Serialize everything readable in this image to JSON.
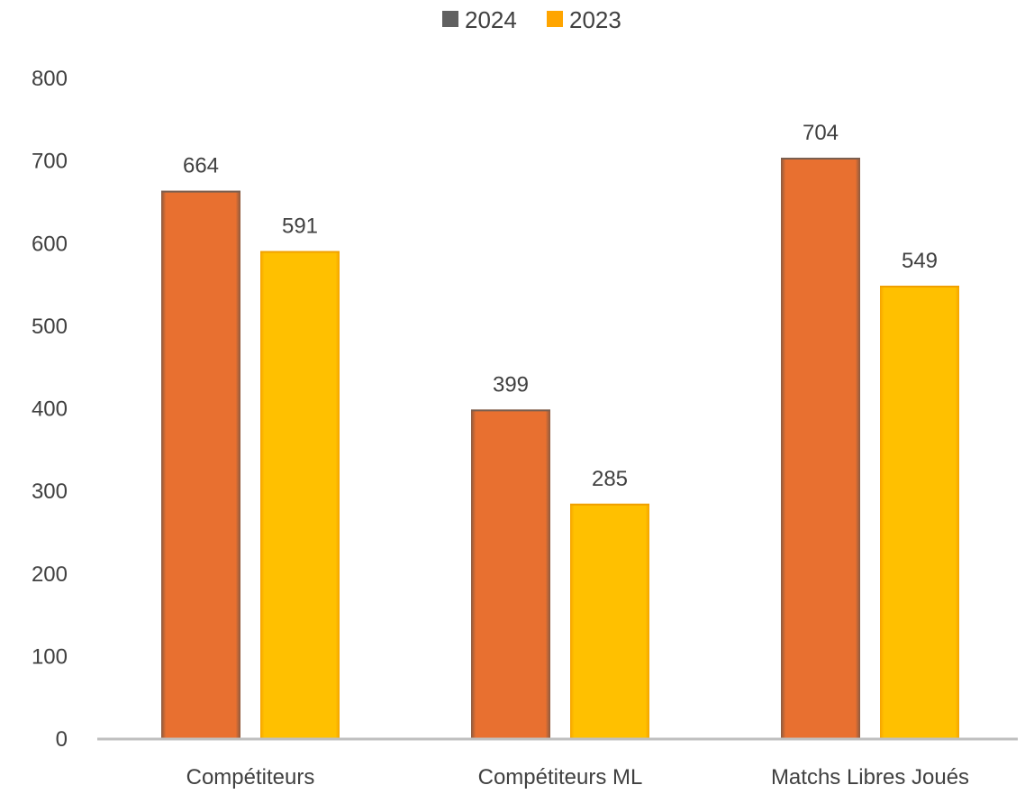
{
  "chart_data": {
    "type": "bar",
    "categories": [
      "Compétiteurs",
      "Compétiteurs ML",
      "Matchs Libres Joués"
    ],
    "series": [
      {
        "name": "2024",
        "values": [
          664,
          399,
          704
        ],
        "color": "#E87030"
      },
      {
        "name": "2023",
        "values": [
          591,
          285,
          549
        ],
        "color": "#FFC000"
      }
    ],
    "legend_marker_colors": [
      "#606060",
      "#FFA500"
    ],
    "ylim": [
      0,
      800
    ],
    "yticks": [
      0,
      100,
      200,
      300,
      400,
      500,
      600,
      700,
      800
    ],
    "ytick_labels": [
      "0",
      "100",
      "200",
      "300",
      "400",
      "500",
      "600",
      "700",
      "800"
    ],
    "title": "",
    "xlabel": "",
    "ylabel": "",
    "grid": false,
    "legend_position": "top-center",
    "data_labels": true
  }
}
